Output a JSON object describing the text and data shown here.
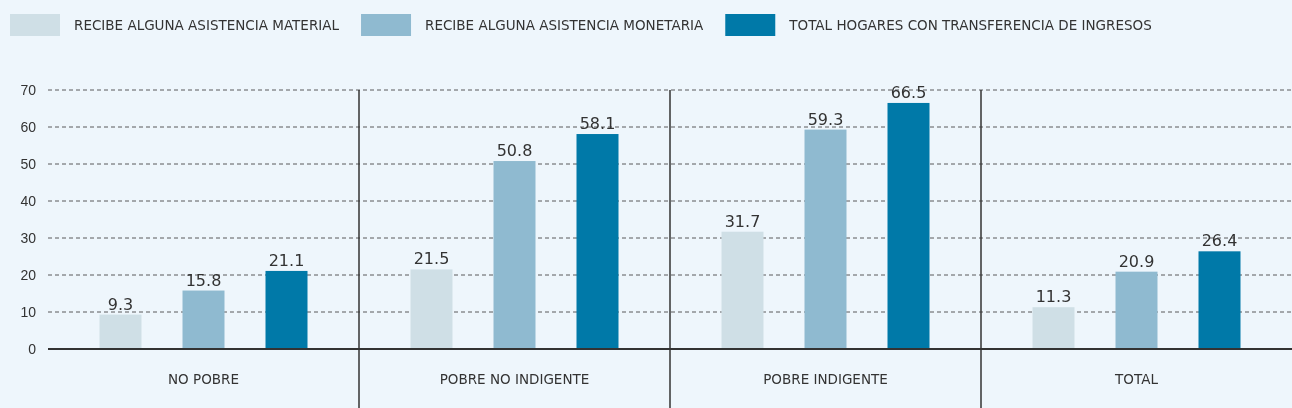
{
  "chart_data": {
    "type": "bar",
    "categories": [
      "NO POBRE",
      "POBRE NO INDIGENTE",
      "POBRE INDIGENTE",
      "TOTAL"
    ],
    "series": [
      {
        "name": "RECIBE ALGUNA ASISTENCIA MATERIAL",
        "color": "#cfdfe6",
        "values": [
          9.3,
          21.5,
          31.7,
          11.3
        ]
      },
      {
        "name": "RECIBE ALGUNA ASISTENCIA MONETARIA",
        "color": "#8fbad0",
        "values": [
          15.8,
          50.8,
          59.3,
          20.9
        ]
      },
      {
        "name": "TOTAL HOGARES CON TRANSFERENCIA DE INGRESOS",
        "color": "#0079a8",
        "values": [
          21.1,
          58.1,
          66.5,
          26.4
        ]
      }
    ],
    "ylim": [
      0,
      70
    ],
    "yticks": [
      0,
      10,
      20,
      30,
      40,
      50,
      60,
      70
    ],
    "grid": "y",
    "legend": "top",
    "data_labels": true
  }
}
